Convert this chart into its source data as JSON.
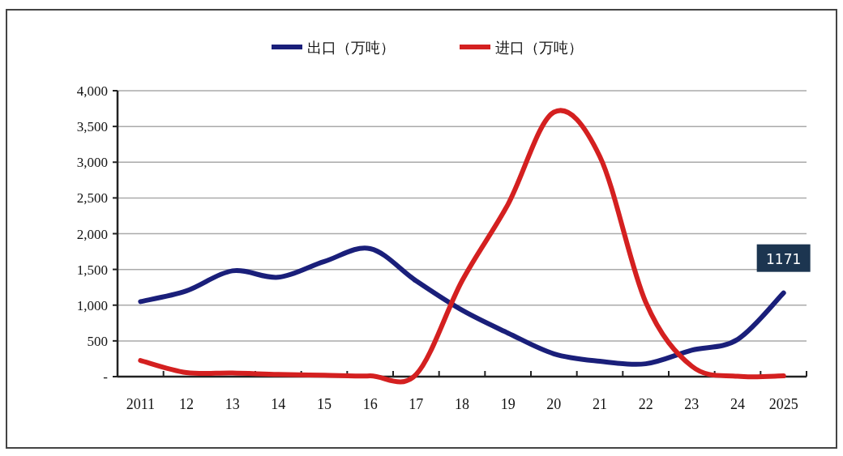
{
  "chart_data": {
    "type": "line",
    "categories": [
      "2011",
      "12",
      "13",
      "14",
      "15",
      "16",
      "17",
      "18",
      "19",
      "20",
      "21",
      "22",
      "23",
      "24",
      "2025"
    ],
    "ylim": [
      0,
      4000
    ],
    "yticks": [
      {
        "value": 0,
        "label": "-"
      },
      {
        "value": 500,
        "label": "500"
      },
      {
        "value": 1000,
        "label": "1,000"
      },
      {
        "value": 1500,
        "label": "1,500"
      },
      {
        "value": 2000,
        "label": "2,000"
      },
      {
        "value": 2500,
        "label": "2,500"
      },
      {
        "value": 3000,
        "label": "3,000"
      },
      {
        "value": 3500,
        "label": "3,500"
      },
      {
        "value": 4000,
        "label": "4,000"
      }
    ],
    "grid": "y",
    "legend": "top",
    "marker": "none",
    "line_style": "solid",
    "series": [
      {
        "name": "出口（万吨）",
        "color": "#1a1f7a",
        "values": [
          1050,
          1200,
          1480,
          1390,
          1610,
          1790,
          1340,
          930,
          610,
          320,
          215,
          180,
          370,
          520,
          1171
        ],
        "value_labels": [
          null,
          null,
          null,
          null,
          null,
          null,
          null,
          null,
          null,
          null,
          null,
          null,
          null,
          null,
          "1171"
        ]
      },
      {
        "name": "进口（万吨）",
        "color": "#d42020",
        "values": [
          226,
          57,
          50,
          30,
          20,
          10,
          30,
          1340,
          2410,
          3700,
          3080,
          1040,
          147,
          5,
          10
        ]
      }
    ]
  }
}
